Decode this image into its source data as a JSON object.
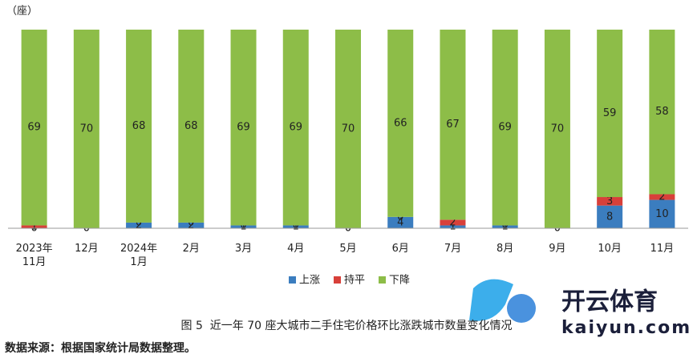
{
  "chart_data": {
    "type": "stacked_bar",
    "unit_label": "（座）",
    "categories": [
      "2023年\n11月",
      "12月",
      "2024年\n1月",
      "2月",
      "3月",
      "4月",
      "5月",
      "6月",
      "7月",
      "8月",
      "9月",
      "10月",
      "11月"
    ],
    "series": [
      {
        "name": "上涨",
        "color": "#3b7dbf",
        "values": [
          0,
          0,
          2,
          2,
          1,
          1,
          0,
          4,
          1,
          1,
          0,
          8,
          10
        ]
      },
      {
        "name": "持平",
        "color": "#d8403a",
        "values": [
          1,
          0,
          0,
          0,
          0,
          0,
          0,
          0,
          2,
          0,
          0,
          3,
          2
        ]
      },
      {
        "name": "下降",
        "color": "#8dbd48",
        "values": [
          69,
          70,
          68,
          68,
          69,
          69,
          70,
          66,
          67,
          69,
          70,
          59,
          58
        ]
      }
    ],
    "ylim": [
      0,
      70
    ],
    "legend": "bottom",
    "caption": "图 5  近一年 70 座大城市二手住宅价格环比涨跌城市数量变化情况",
    "source": "数据来源：根据国家统计局数据整理。",
    "watermark": {
      "brand": "开云体育",
      "site": "kaiyun.com"
    }
  }
}
